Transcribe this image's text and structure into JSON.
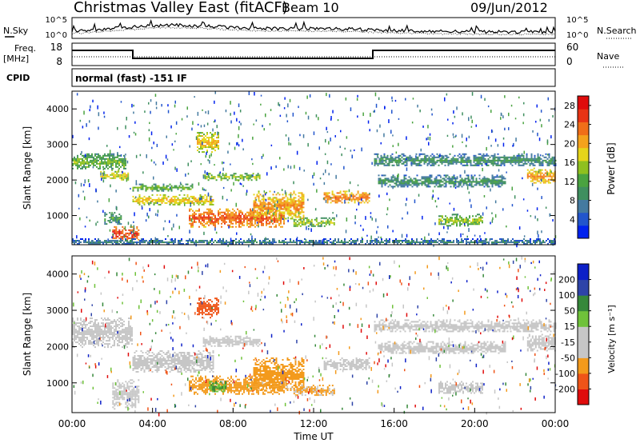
{
  "header": {
    "title": "Christmas Valley East (fitACF)",
    "beam": "Beam 10",
    "date": "09/Jun/2012"
  },
  "panels": {
    "nsky": {
      "label": "N.Sky",
      "right_label": "N.Search",
      "ticks": [
        "10^5",
        "10^0"
      ],
      "right_ticks": [
        "10^5",
        "10^0"
      ]
    },
    "freq": {
      "label_line1": "Freq.",
      "label_line2": "[MHz]",
      "ticks": [
        "18",
        "8"
      ],
      "right_label": "Nave",
      "right_ticks": [
        "60",
        "0"
      ]
    },
    "cpid": {
      "label": "CPID",
      "text": "normal (fast) -151 IF"
    }
  },
  "colors": {
    "power": [
      "#0022ee",
      "#2255cc",
      "#447aa0",
      "#3f8f5f",
      "#4aa340",
      "#8fc01f",
      "#e5d51a",
      "#f4a21c",
      "#f06e18",
      "#e83414",
      "#e00c0c"
    ],
    "velocity_legend": [
      "#e00c0c",
      "#ef5418",
      "#f39a1c",
      "#c6c6c6",
      "#c6c6c6",
      "#6fc23a",
      "#36883a",
      "#2e44a8",
      "#0d20c8"
    ],
    "gray": "#c6c6c6"
  },
  "chart_data": [
    {
      "type": "heatmap",
      "name": "power",
      "ylabel": "Slant Range [km]",
      "yticks": [
        1000,
        2000,
        3000,
        4000
      ],
      "ylim": [
        180,
        4500
      ],
      "xlim_hours": [
        0,
        24
      ],
      "colorbar": {
        "label": "Power [dB]",
        "ticks": [
          "4",
          "8",
          "12",
          "16",
          "20",
          "24",
          "28"
        ],
        "range": [
          0,
          30
        ]
      },
      "bands": [
        {
          "t": [
            0.0,
            2.7
          ],
          "r": [
            2300,
            2750
          ],
          "level": 12
        },
        {
          "t": [
            1.4,
            2.8
          ],
          "r": [
            2000,
            2300
          ],
          "level": 16
        },
        {
          "t": [
            2.0,
            3.3
          ],
          "r": [
            300,
            700
          ],
          "level": 26
        },
        {
          "t": [
            1.6,
            2.4
          ],
          "r": [
            750,
            1100
          ],
          "level": 10
        },
        {
          "t": [
            3.0,
            7.0
          ],
          "r": [
            1300,
            1600
          ],
          "level": 18
        },
        {
          "t": [
            3.0,
            6.0
          ],
          "r": [
            1700,
            1900
          ],
          "level": 12
        },
        {
          "t": [
            6.2,
            7.3
          ],
          "r": [
            2800,
            3350
          ],
          "level": 18
        },
        {
          "t": [
            6.5,
            9.3
          ],
          "r": [
            2000,
            2200
          ],
          "level": 14
        },
        {
          "t": [
            5.8,
            10.5
          ],
          "r": [
            700,
            1200
          ],
          "level": 24
        },
        {
          "t": [
            9.0,
            11.5
          ],
          "r": [
            900,
            1700
          ],
          "level": 20
        },
        {
          "t": [
            11.0,
            13.0
          ],
          "r": [
            700,
            950
          ],
          "level": 14
        },
        {
          "t": [
            12.5,
            14.8
          ],
          "r": [
            1350,
            1700
          ],
          "level": 22
        },
        {
          "t": [
            15.0,
            24.0
          ],
          "r": [
            2400,
            2750
          ],
          "level": 8
        },
        {
          "t": [
            15.2,
            21.5
          ],
          "r": [
            1800,
            2150
          ],
          "level": 8
        },
        {
          "t": [
            18.2,
            20.4
          ],
          "r": [
            700,
            1050
          ],
          "level": 14
        },
        {
          "t": [
            22.6,
            24.0
          ],
          "r": [
            1900,
            2350
          ],
          "level": 20
        },
        {
          "t": [
            0.0,
            24.0
          ],
          "r": [
            200,
            360
          ],
          "level": 6
        }
      ]
    },
    {
      "type": "heatmap",
      "name": "velocity",
      "ylabel": "Slant Range [km]",
      "yticks": [
        1000,
        2000,
        3000,
        4000
      ],
      "ylim": [
        180,
        4500
      ],
      "xlim_hours": [
        0,
        24
      ],
      "xticks": [
        "00:00",
        "04:00",
        "08:00",
        "12:00",
        "16:00",
        "20:00",
        "00:00"
      ],
      "xlabel": "Time UT",
      "colorbar": {
        "label": "Velocity [m s⁻¹]",
        "ticks": [
          "-200",
          "-100",
          "-50",
          "-15",
          "15",
          "50",
          "100",
          "200"
        ],
        "range": [
          -250,
          250
        ]
      },
      "bands": [
        {
          "t": [
            0.0,
            3.0
          ],
          "r": [
            2000,
            2800
          ],
          "v": 0
        },
        {
          "t": [
            2.0,
            3.3
          ],
          "r": [
            300,
            1100
          ],
          "v": 0
        },
        {
          "t": [
            3.0,
            7.0
          ],
          "r": [
            1300,
            1900
          ],
          "v": 0
        },
        {
          "t": [
            5.8,
            10.5
          ],
          "r": [
            700,
            1200
          ],
          "v": -45
        },
        {
          "t": [
            6.8,
            7.6
          ],
          "r": [
            750,
            1050
          ],
          "v": 40
        },
        {
          "t": [
            6.2,
            7.3
          ],
          "r": [
            2800,
            3350
          ],
          "v": -90
        },
        {
          "t": [
            6.5,
            9.3
          ],
          "r": [
            2000,
            2300
          ],
          "v": 0
        },
        {
          "t": [
            9.0,
            11.5
          ],
          "r": [
            800,
            1700
          ],
          "v": -50
        },
        {
          "t": [
            11.0,
            13.0
          ],
          "r": [
            650,
            950
          ],
          "v": -20
        },
        {
          "t": [
            12.5,
            14.8
          ],
          "r": [
            1350,
            1700
          ],
          "v": 0
        },
        {
          "t": [
            15.0,
            24.0
          ],
          "r": [
            2400,
            2750
          ],
          "v": 0
        },
        {
          "t": [
            15.2,
            21.5
          ],
          "r": [
            1800,
            2150
          ],
          "v": 0
        },
        {
          "t": [
            18.2,
            20.4
          ],
          "r": [
            700,
            1050
          ],
          "v": 0
        },
        {
          "t": [
            22.6,
            24.0
          ],
          "r": [
            1900,
            2350
          ],
          "v": 0
        }
      ]
    }
  ]
}
